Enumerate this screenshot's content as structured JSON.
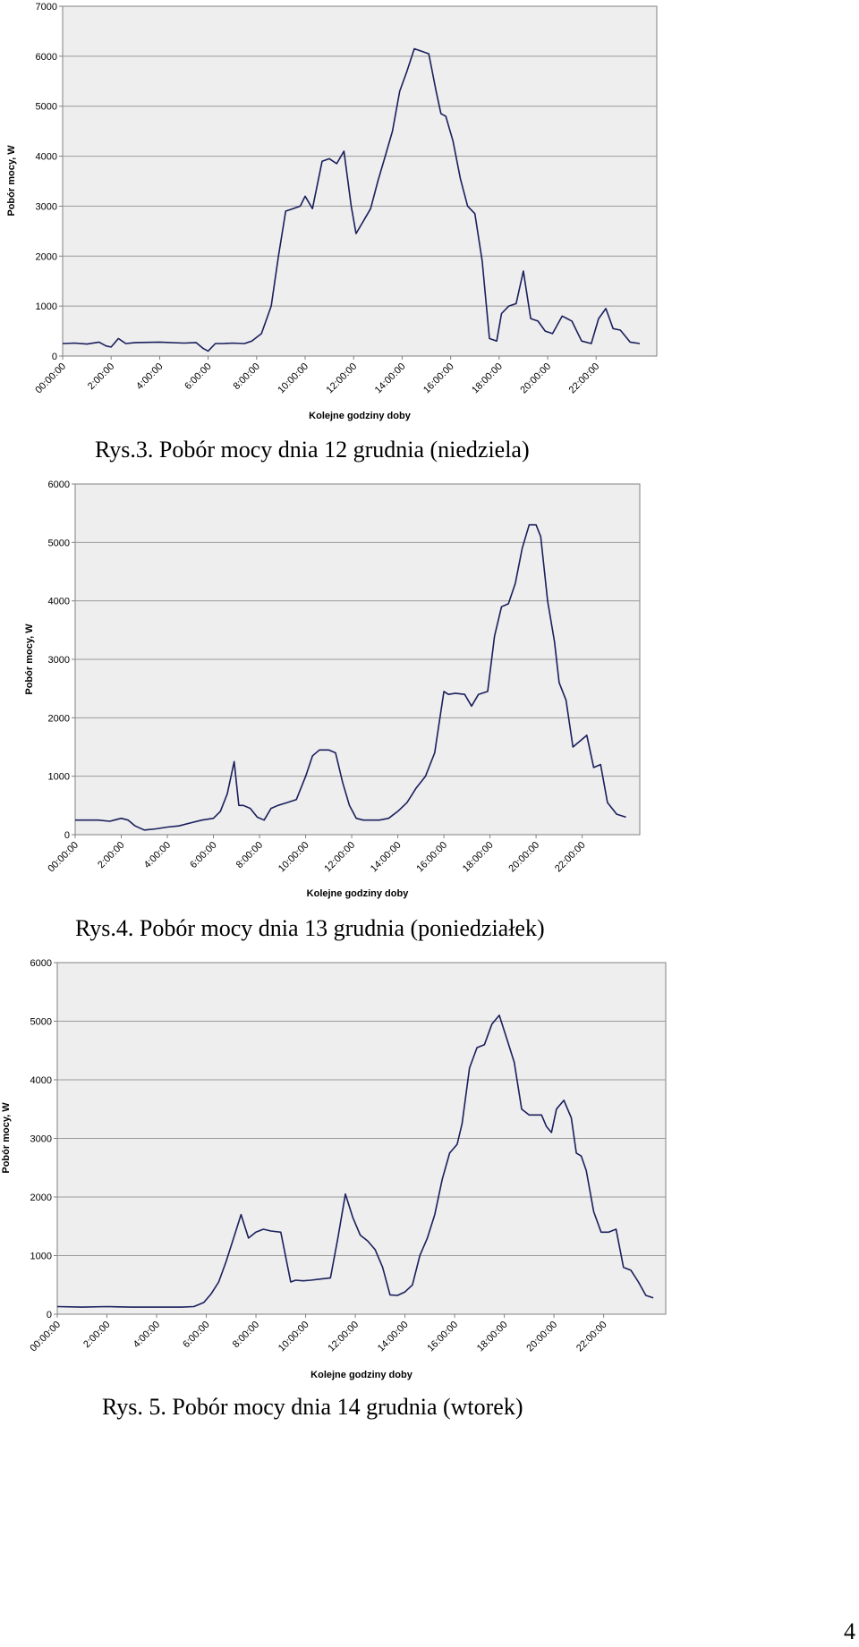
{
  "page_number": "4",
  "chart_data": [
    {
      "type": "line",
      "caption": "Rys.3. Pobór mocy dnia 12 grudnia (niedziela)",
      "xlabel": "Kolejne godziny doby",
      "ylabel": "Pobór mocy, W",
      "ylim": [
        0,
        7000
      ],
      "yticks": [
        "0",
        "1000",
        "2000",
        "3000",
        "4000",
        "5000",
        "6000",
        "7000"
      ],
      "xticks": [
        "00:00:00",
        "2:00:00",
        "4:00:00",
        "6:00:00",
        "8:00:00",
        "10:00:00",
        "12:00:00",
        "14:00:00",
        "16:00:00",
        "18:00:00",
        "20:00:00",
        "22:00:00"
      ],
      "xlim": [
        0,
        24.5
      ],
      "grid": true,
      "line_color": "#1a1f5c",
      "plot_background": "#eeeeee",
      "series": [
        {
          "x": [
            0,
            0.5,
            1,
            1.5,
            1.8,
            2,
            2.3,
            2.6,
            3,
            4,
            5,
            5.5,
            5.8,
            6,
            6.3,
            6.6,
            7,
            7.5,
            7.8,
            8.2,
            8.6,
            8.9,
            9.2,
            9.5,
            9.8,
            10,
            10.3,
            10.7,
            11,
            11.3,
            11.6,
            11.9,
            12.1,
            12.4,
            12.7,
            13,
            13.3,
            13.6,
            13.9,
            14.2,
            14.5,
            14.8,
            15.1,
            15.4,
            15.6,
            15.8,
            16.1,
            16.4,
            16.7,
            17,
            17.3,
            17.6,
            17.9,
            18.1,
            18.4,
            18.7,
            19,
            19.3,
            19.6,
            19.9,
            20.2,
            20.6,
            21,
            21.4,
            21.8,
            22.1,
            22.4,
            22.7,
            23,
            23.4,
            23.8
          ],
          "y": [
            250,
            260,
            240,
            280,
            200,
            180,
            350,
            250,
            270,
            280,
            260,
            270,
            150,
            100,
            250,
            250,
            260,
            250,
            300,
            450,
            1000,
            2000,
            2900,
            2950,
            3000,
            3200,
            2950,
            3900,
            3950,
            3850,
            4100,
            3000,
            2450,
            2700,
            2950,
            3500,
            4000,
            4500,
            5300,
            5700,
            6150,
            6100,
            6050,
            5300,
            4850,
            4800,
            4300,
            3550,
            3000,
            2850,
            1900,
            350,
            300,
            850,
            1000,
            1050,
            1700,
            750,
            700,
            500,
            450,
            800,
            700,
            300,
            250,
            750,
            950,
            550,
            520,
            280,
            250
          ]
        }
      ]
    },
    {
      "type": "line",
      "caption": "Rys.4. Pobór mocy dnia 13 grudnia (poniedziałek)",
      "xlabel": "Kolejne godziny doby",
      "ylabel": "Pobór mocy, W",
      "ylim": [
        0,
        6000
      ],
      "yticks": [
        "0",
        "1000",
        "2000",
        "3000",
        "4000",
        "5000",
        "6000"
      ],
      "xticks": [
        "00:00:00",
        "2:00:00",
        "4:00:00",
        "6:00:00",
        "8:00:00",
        "10:00:00",
        "12:00:00",
        "14:00:00",
        "16:00:00",
        "18:00:00",
        "20:00:00",
        "22:00:00"
      ],
      "xlim": [
        0,
        24.5
      ],
      "grid": true,
      "line_color": "#1a1f5c",
      "plot_background": "#eeeeee",
      "series": [
        {
          "x": [
            0,
            1,
            1.5,
            2,
            2.3,
            2.6,
            3,
            3.5,
            4,
            4.5,
            5,
            5.5,
            6,
            6.3,
            6.6,
            6.9,
            7.1,
            7.3,
            7.6,
            7.9,
            8.2,
            8.5,
            8.8,
            9.2,
            9.6,
            10,
            10.3,
            10.6,
            11,
            11.3,
            11.6,
            11.9,
            12.2,
            12.5,
            12.8,
            13.2,
            13.6,
            14,
            14.4,
            14.8,
            15.2,
            15.6,
            16,
            16.2,
            16.5,
            16.9,
            17.2,
            17.5,
            17.9,
            18.2,
            18.5,
            18.8,
            19.1,
            19.4,
            19.7,
            20,
            20.2,
            20.5,
            20.8,
            21,
            21.3,
            21.6,
            21.9,
            22.2,
            22.5,
            22.8,
            23.1,
            23.5,
            23.9
          ],
          "y": [
            250,
            250,
            230,
            280,
            250,
            150,
            80,
            100,
            130,
            150,
            200,
            250,
            280,
            400,
            700,
            1250,
            500,
            500,
            450,
            300,
            250,
            450,
            500,
            550,
            600,
            1000,
            1350,
            1450,
            1450,
            1400,
            900,
            500,
            280,
            250,
            250,
            250,
            280,
            400,
            550,
            800,
            1000,
            1400,
            2450,
            2400,
            2420,
            2400,
            2200,
            2400,
            2450,
            3400,
            3900,
            3950,
            4300,
            4900,
            5300,
            5300,
            5100,
            4000,
            3300,
            2600,
            2300,
            1500,
            1600,
            1700,
            1150,
            1200,
            550,
            350,
            300
          ]
        }
      ]
    },
    {
      "type": "line",
      "caption": "Rys. 5. Pobór mocy dnia 14 grudnia (wtorek)",
      "xlabel": "Kolejne godziny doby",
      "ylabel": "Pobór mocy, W",
      "ylim": [
        0,
        6000
      ],
      "yticks": [
        "0",
        "1000",
        "2000",
        "3000",
        "4000",
        "5000",
        "6000"
      ],
      "xticks": [
        "00:00:00",
        "2:00:00",
        "4:00:00",
        "6:00:00",
        "8:00:00",
        "10:00:00",
        "12:00:00",
        "14:00:00",
        "16:00:00",
        "18:00:00",
        "20:00:00",
        "22:00:00"
      ],
      "xlim": [
        0,
        24.5
      ],
      "grid": true,
      "line_color": "#1a1f5c",
      "plot_background": "#eeeeee",
      "series": [
        {
          "x": [
            0,
            1,
            2,
            3,
            4,
            5,
            5.5,
            5.9,
            6.2,
            6.5,
            6.8,
            7.1,
            7.4,
            7.7,
            8,
            8.3,
            8.6,
            9,
            9.4,
            9.6,
            9.9,
            10.2,
            10.6,
            11,
            11.3,
            11.6,
            11.9,
            12.2,
            12.5,
            12.8,
            13.1,
            13.4,
            13.7,
            14,
            14.3,
            14.6,
            14.9,
            15.2,
            15.5,
            15.8,
            16.1,
            16.3,
            16.6,
            16.9,
            17.2,
            17.5,
            17.8,
            18.1,
            18.4,
            18.7,
            19,
            19.2,
            19.5,
            19.7,
            19.9,
            20.1,
            20.4,
            20.7,
            20.9,
            21.1,
            21.3,
            21.6,
            21.9,
            22.2,
            22.5,
            22.8,
            23.1,
            23.4,
            23.7,
            24
          ],
          "y": [
            130,
            120,
            130,
            120,
            120,
            120,
            130,
            200,
            350,
            550,
            900,
            1300,
            1700,
            1300,
            1400,
            1450,
            1420,
            1400,
            550,
            580,
            570,
            580,
            600,
            620,
            1300,
            2050,
            1650,
            1350,
            1250,
            1100,
            800,
            330,
            320,
            380,
            500,
            1000,
            1300,
            1700,
            2300,
            2750,
            2900,
            3250,
            4200,
            4550,
            4600,
            4950,
            5100,
            4700,
            4300,
            3500,
            3400,
            3400,
            3400,
            3200,
            3100,
            3500,
            3650,
            3350,
            2750,
            2700,
            2450,
            1750,
            1400,
            1400,
            1450,
            800,
            750,
            550,
            320,
            280
          ]
        }
      ]
    }
  ]
}
